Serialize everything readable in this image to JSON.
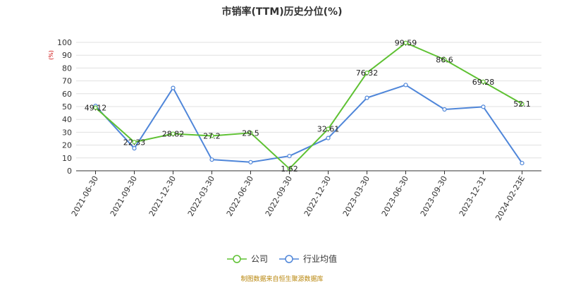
{
  "chart_data": {
    "type": "line",
    "title": "市销率(TTM)历史分位(%)",
    "ylabel": "(%)",
    "xlabel": "",
    "ylim": [
      0,
      100
    ],
    "yticks": [
      0,
      10,
      20,
      30,
      40,
      50,
      60,
      70,
      80,
      90,
      100
    ],
    "grid": true,
    "legend_position": "bottom",
    "categories": [
      "2021-06-30",
      "2021-09-30",
      "2021-12-30",
      "2022-03-30",
      "2022-06-30",
      "2022-09-30",
      "2022-12-30",
      "2023-03-30",
      "2023-06-30",
      "2023-09-30",
      "2023-12-31",
      "2024-02-23E"
    ],
    "series": [
      {
        "name": "公司",
        "color": "#5ec132",
        "values": [
          49.12,
          22.33,
          28.82,
          27.2,
          29.5,
          1.62,
          32.61,
          76.32,
          99.59,
          86.6,
          69.28,
          52.1
        ],
        "labels": [
          "49.12",
          "22.33",
          "28.82",
          "27.2",
          "29.5",
          "1.62",
          "32.61",
          "76.32",
          "99.59",
          "86.6",
          "69.28",
          "52.1"
        ]
      },
      {
        "name": "行业均值",
        "color": "#4f86d9",
        "values": [
          50.5,
          17.5,
          64.5,
          8.7,
          6.7,
          11.5,
          25.5,
          56.8,
          66.8,
          47.8,
          49.8,
          6.0
        ]
      }
    ],
    "source_note": "制图数据来自恒生聚源数据库"
  }
}
